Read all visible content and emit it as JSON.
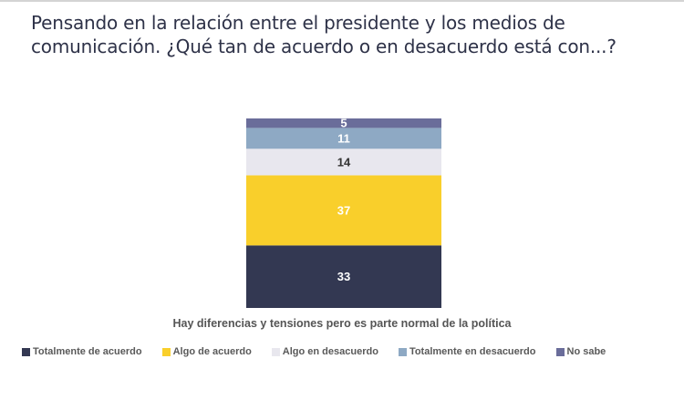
{
  "title": "Pensando en la relación entre el presidente y los medios de comunicación. ¿Qué tan de acuerdo o en desacuerdo está con...?",
  "chart_data": {
    "type": "bar",
    "stacked": true,
    "title": "Pensando en la relación entre el presidente y los medios de comunicación. ¿Qué tan de acuerdo o en desacuerdo está con...?",
    "categories": [
      "Hay diferencias y tensiones pero es parte normal de la política"
    ],
    "xlabel": "Hay diferencias y tensiones pero es parte normal de la política",
    "ylabel": "",
    "ylim": [
      0,
      100
    ],
    "grid": false,
    "legend_position": "bottom",
    "series": [
      {
        "name": "Totalmente de acuerdo",
        "values": [
          33
        ],
        "color": "#333852",
        "label_color": "#ffffff"
      },
      {
        "name": "Algo de acuerdo",
        "values": [
          37
        ],
        "color": "#f9cf2b",
        "label_color": "#ffffff"
      },
      {
        "name": "Algo en desacuerdo",
        "values": [
          14
        ],
        "color": "#e8e7ee",
        "label_color": "#333333"
      },
      {
        "name": "Totalmente en desacuerdo",
        "values": [
          11
        ],
        "color": "#8ea9c4",
        "label_color": "#ffffff"
      },
      {
        "name": "No sabe",
        "values": [
          5
        ],
        "color": "#6a6d9a",
        "label_color": "#ffffff"
      }
    ]
  }
}
